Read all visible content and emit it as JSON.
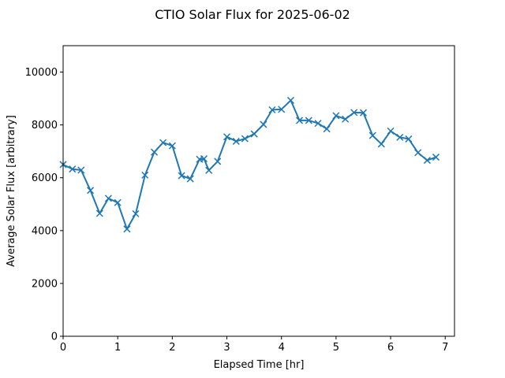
{
  "chart_data": {
    "type": "line",
    "title": "CTIO Solar Flux for 2025-06-02",
    "xlabel": "Elapsed Time [hr]",
    "ylabel": "Average Solar Flux [arbitrary]",
    "xlim": [
      0,
      7.17
    ],
    "ylim": [
      0,
      11000
    ],
    "xticks": [
      0,
      1,
      2,
      3,
      4,
      5,
      6,
      7
    ],
    "yticks": [
      0,
      2000,
      4000,
      6000,
      8000,
      10000
    ],
    "grid": false,
    "line_color": "#1f77b4",
    "marker": "x",
    "series": [
      {
        "x": [
          0.0,
          0.17,
          0.33,
          0.5,
          0.67,
          0.83,
          1.0,
          1.17,
          1.33,
          1.5,
          1.67,
          1.83,
          2.0,
          2.17,
          2.33,
          2.5,
          2.58,
          2.67,
          2.83,
          3.0,
          3.17,
          3.33,
          3.5,
          3.67,
          3.83,
          4.0,
          4.17,
          4.33,
          4.5,
          4.67,
          4.83,
          5.0,
          5.17,
          5.33,
          5.5,
          5.67,
          5.83,
          6.0,
          6.17,
          6.33,
          6.5,
          6.67,
          6.83
        ],
        "values": [
          6500,
          6330,
          6290,
          5520,
          4650,
          5220,
          5060,
          4060,
          4640,
          6100,
          6970,
          7330,
          7210,
          6080,
          5960,
          6700,
          6720,
          6280,
          6620,
          7550,
          7380,
          7480,
          7660,
          8020,
          8570,
          8590,
          8930,
          8170,
          8170,
          8060,
          7850,
          8350,
          8220,
          8470,
          8460,
          7600,
          7280,
          7770,
          7530,
          7470,
          6950,
          6660,
          6780
        ]
      }
    ]
  }
}
